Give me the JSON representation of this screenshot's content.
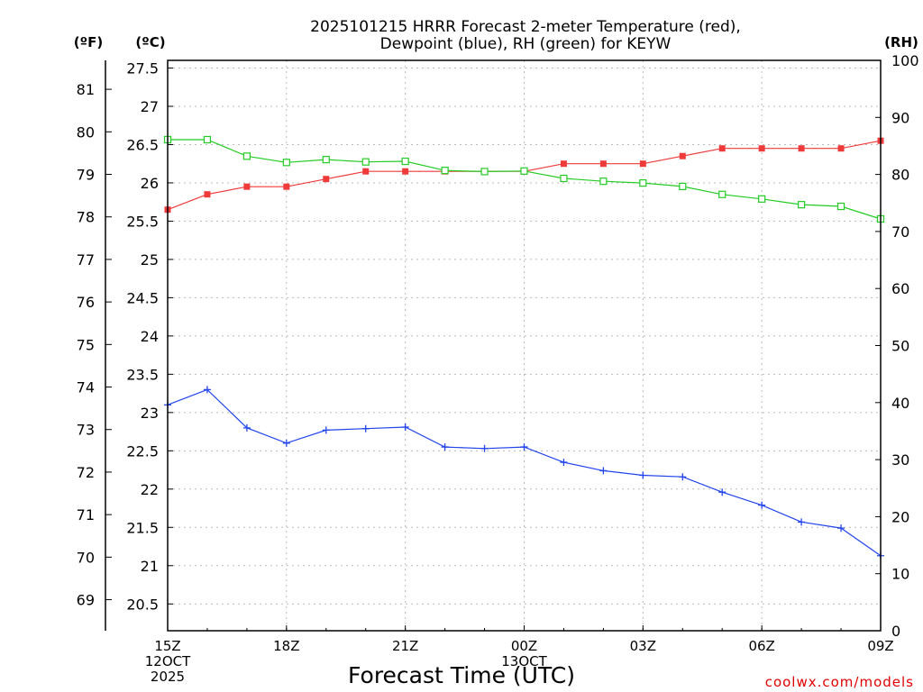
{
  "chart_data": {
    "type": "line",
    "title_line1": "2025101215 HRRR Forecast 2-meter Temperature (red),",
    "title_line2": "Dewpoint (blue), RH (green) for KEYW",
    "xlabel": "Forecast Time (UTC)",
    "credit": "coolwx.com/models",
    "units": {
      "fahrenheit": "(ºF)",
      "celsius": "(ºC)",
      "rh": "(RH)"
    },
    "x_ticks": [
      {
        "hour": 0,
        "lines": [
          "15Z",
          "12OCT",
          "2025"
        ]
      },
      {
        "hour": 3,
        "lines": [
          "18Z"
        ]
      },
      {
        "hour": 6,
        "lines": [
          "21Z"
        ]
      },
      {
        "hour": 9,
        "lines": [
          "00Z",
          "13OCT"
        ]
      },
      {
        "hour": 12,
        "lines": [
          "03Z"
        ]
      },
      {
        "hour": 15,
        "lines": [
          "06Z"
        ]
      },
      {
        "hour": 18,
        "lines": [
          "09Z"
        ]
      }
    ],
    "xlim": [
      0,
      18
    ],
    "celsius_axis": {
      "ylim": [
        20.15,
        27.6
      ],
      "ticks": [
        20.5,
        21,
        21.5,
        22,
        22.5,
        23,
        23.5,
        24,
        24.5,
        25,
        25.5,
        26,
        26.5,
        27,
        27.5
      ]
    },
    "fahrenheit_axis": {
      "ticks": [
        69,
        70,
        71,
        72,
        73,
        74,
        75,
        76,
        77,
        78,
        79,
        80,
        81
      ]
    },
    "rh_axis": {
      "ylim": [
        0,
        100
      ],
      "ticks": [
        0,
        10,
        20,
        30,
        40,
        50,
        60,
        70,
        80,
        90,
        100
      ]
    },
    "series": [
      {
        "name": "Temperature",
        "color": "#ef3a3a",
        "axis": "celsius",
        "marker": "filled-square",
        "x": [
          0,
          1,
          2,
          3,
          4,
          5,
          6,
          7,
          8,
          9,
          10,
          11,
          12,
          13,
          14,
          15,
          16,
          17,
          18
        ],
        "values": [
          25.65,
          25.85,
          25.95,
          25.95,
          26.05,
          26.15,
          26.15,
          26.15,
          26.15,
          26.15,
          26.25,
          26.25,
          26.25,
          26.35,
          26.45,
          26.45,
          26.45,
          26.45,
          26.55
        ]
      },
      {
        "name": "Dewpoint",
        "color": "#2244ee",
        "axis": "celsius",
        "marker": "plus",
        "x": [
          0,
          1,
          2,
          3,
          4,
          5,
          6,
          7,
          8,
          9,
          10,
          11,
          12,
          13,
          14,
          15,
          16,
          17,
          18
        ],
        "values": [
          23.1,
          23.3,
          22.8,
          22.6,
          22.77,
          22.79,
          22.81,
          22.55,
          22.53,
          22.55,
          22.35,
          22.24,
          22.18,
          22.16,
          21.96,
          21.79,
          21.57,
          21.49,
          21.13
        ]
      },
      {
        "name": "RH",
        "color": "#22cc22",
        "axis": "rh",
        "marker": "open-square",
        "x": [
          0,
          1,
          2,
          3,
          4,
          5,
          6,
          7,
          8,
          9,
          10,
          11,
          12,
          13,
          14,
          15,
          16,
          17,
          18
        ],
        "values": [
          86.1,
          86.1,
          83.2,
          82.1,
          82.6,
          82.2,
          82.3,
          80.7,
          80.5,
          80.6,
          79.3,
          78.8,
          78.5,
          77.9,
          76.5,
          75.7,
          74.7,
          74.4,
          72.2
        ]
      }
    ]
  }
}
